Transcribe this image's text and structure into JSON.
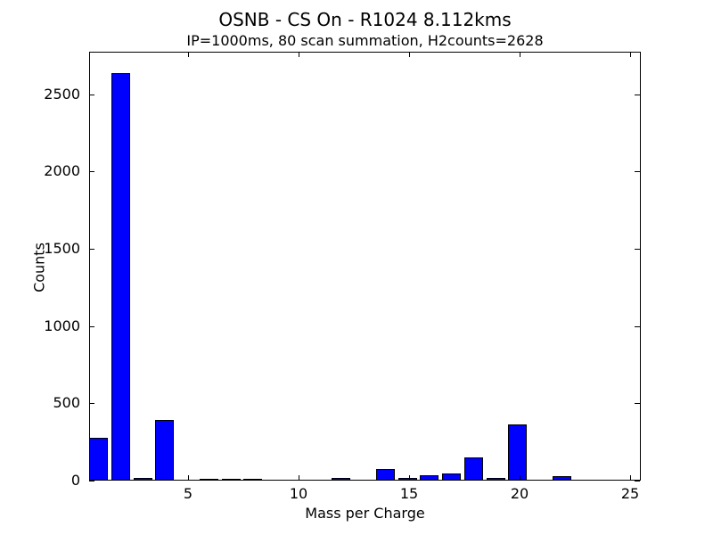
{
  "figure": {
    "background": "#ffffff",
    "title": "OSNB - CS On - R1024 8.112kms",
    "subtitle": "IP=1000ms, 80 scan summation, H2counts=2628"
  },
  "chart_data": {
    "type": "bar",
    "title": "OSNB - CS On - R1024 8.112kms",
    "subtitle": "IP=1000ms, 80 scan summation, H2counts=2628",
    "xlabel": "Mass per Charge",
    "ylabel": "Counts",
    "x": [
      1,
      2,
      3,
      4,
      5,
      6,
      7,
      8,
      9,
      10,
      11,
      12,
      13,
      14,
      15,
      16,
      17,
      18,
      19,
      20,
      21,
      22,
      23,
      24,
      25
    ],
    "values": [
      270,
      2628,
      10,
      387,
      0,
      5,
      5,
      5,
      0,
      0,
      0,
      10,
      0,
      68,
      14,
      26,
      38,
      144,
      13,
      358,
      0,
      24,
      0,
      0,
      0
    ],
    "xlim": [
      0.5,
      25.5
    ],
    "ylim": [
      0,
      2775
    ],
    "x_ticks": [
      5,
      10,
      15,
      20,
      25
    ],
    "x_tick_labels": [
      "5",
      "10",
      "15",
      "20",
      "25"
    ],
    "y_ticks": [
      0,
      500,
      1000,
      1500,
      2000,
      2500
    ],
    "y_tick_labels": [
      "0",
      "500",
      "1000",
      "1500",
      "2000",
      "2500"
    ],
    "bar_width": 0.85,
    "bar_left_offset": -0.5,
    "bar_color": "#0000ff",
    "bar_edge_color": "#000000",
    "grid": false,
    "legend": null,
    "tick_direction": "in",
    "tick_sides": [
      "bottom",
      "top",
      "left",
      "right"
    ]
  }
}
